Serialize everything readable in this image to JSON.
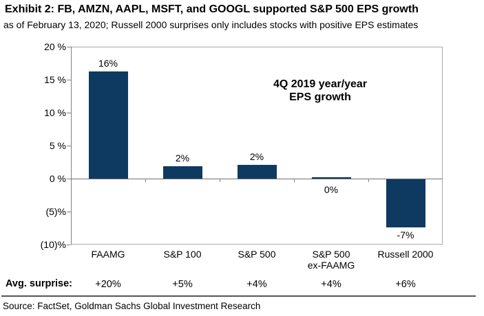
{
  "header": {
    "title": "Exhibit 2: FB, AMZN, AAPL, MSFT, and GOOGL supported S&P 500 EPS growth",
    "subtitle": "as of February 13, 2020; Russell 2000 surprises only includes stocks with positive EPS estimates"
  },
  "chart_data": {
    "type": "bar",
    "annotation_lines": [
      "4Q 2019 year/year",
      "EPS growth"
    ],
    "categories": [
      "FAAMG",
      "S&P 100",
      "S&P 500",
      "S&P 500 ex-FAAMG",
      "Russell 2000"
    ],
    "category_lines": [
      [
        "FAAMG"
      ],
      [
        "S&P 100"
      ],
      [
        "S&P 500"
      ],
      [
        "S&P 500",
        "ex-FAAMG"
      ],
      [
        "Russell 2000"
      ]
    ],
    "values": [
      16,
      2,
      2,
      0,
      -7
    ],
    "drawn_values": [
      16.3,
      1.9,
      2.1,
      0.2,
      -7.3
    ],
    "value_labels": [
      "16%",
      "2%",
      "2%",
      "0%",
      "-7%"
    ],
    "ylim": [
      -10,
      20
    ],
    "yticks": [
      20,
      15,
      10,
      5,
      0,
      -5,
      -10
    ],
    "ytick_labels": [
      "20 %",
      "15 %",
      "10 %",
      "5 %",
      "0 %",
      "(5)%",
      "(10)%"
    ],
    "grid": false,
    "legend": false,
    "colors": {
      "bar": "#0e3a62",
      "zero_line": "#6e6e6e",
      "frame": "#a9a9a9",
      "axis": "#808080",
      "text": "#000000"
    }
  },
  "avg_surprise": {
    "label": "Avg. surprise:",
    "values": [
      "+20%",
      "+5%",
      "+4%",
      "+4%",
      "+6%"
    ]
  },
  "footer": {
    "source": "Source: FactSet, Goldman Sachs Global Investment Research"
  }
}
